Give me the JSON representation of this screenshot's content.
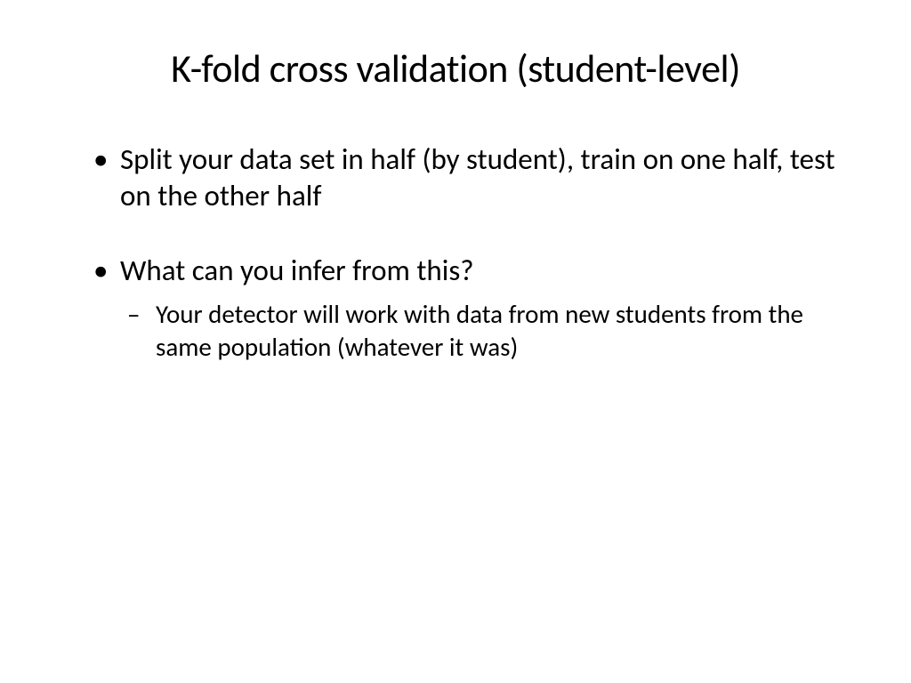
{
  "slide": {
    "title": "K-fold cross validation (student-level)",
    "background_color": "#ffffff",
    "text_color": "#000000",
    "title_fontsize": 44,
    "body_fontsize": 33,
    "sub_fontsize": 29,
    "font_family": "Calibri",
    "bullets": [
      {
        "text": "Split your data set in half (by student), train on one half, test on the other half",
        "children": []
      },
      {
        "text": "What can you infer from this?",
        "children": [
          {
            "text": "Your detector will work with data from new students from the same population (whatever it was)"
          }
        ]
      }
    ]
  }
}
